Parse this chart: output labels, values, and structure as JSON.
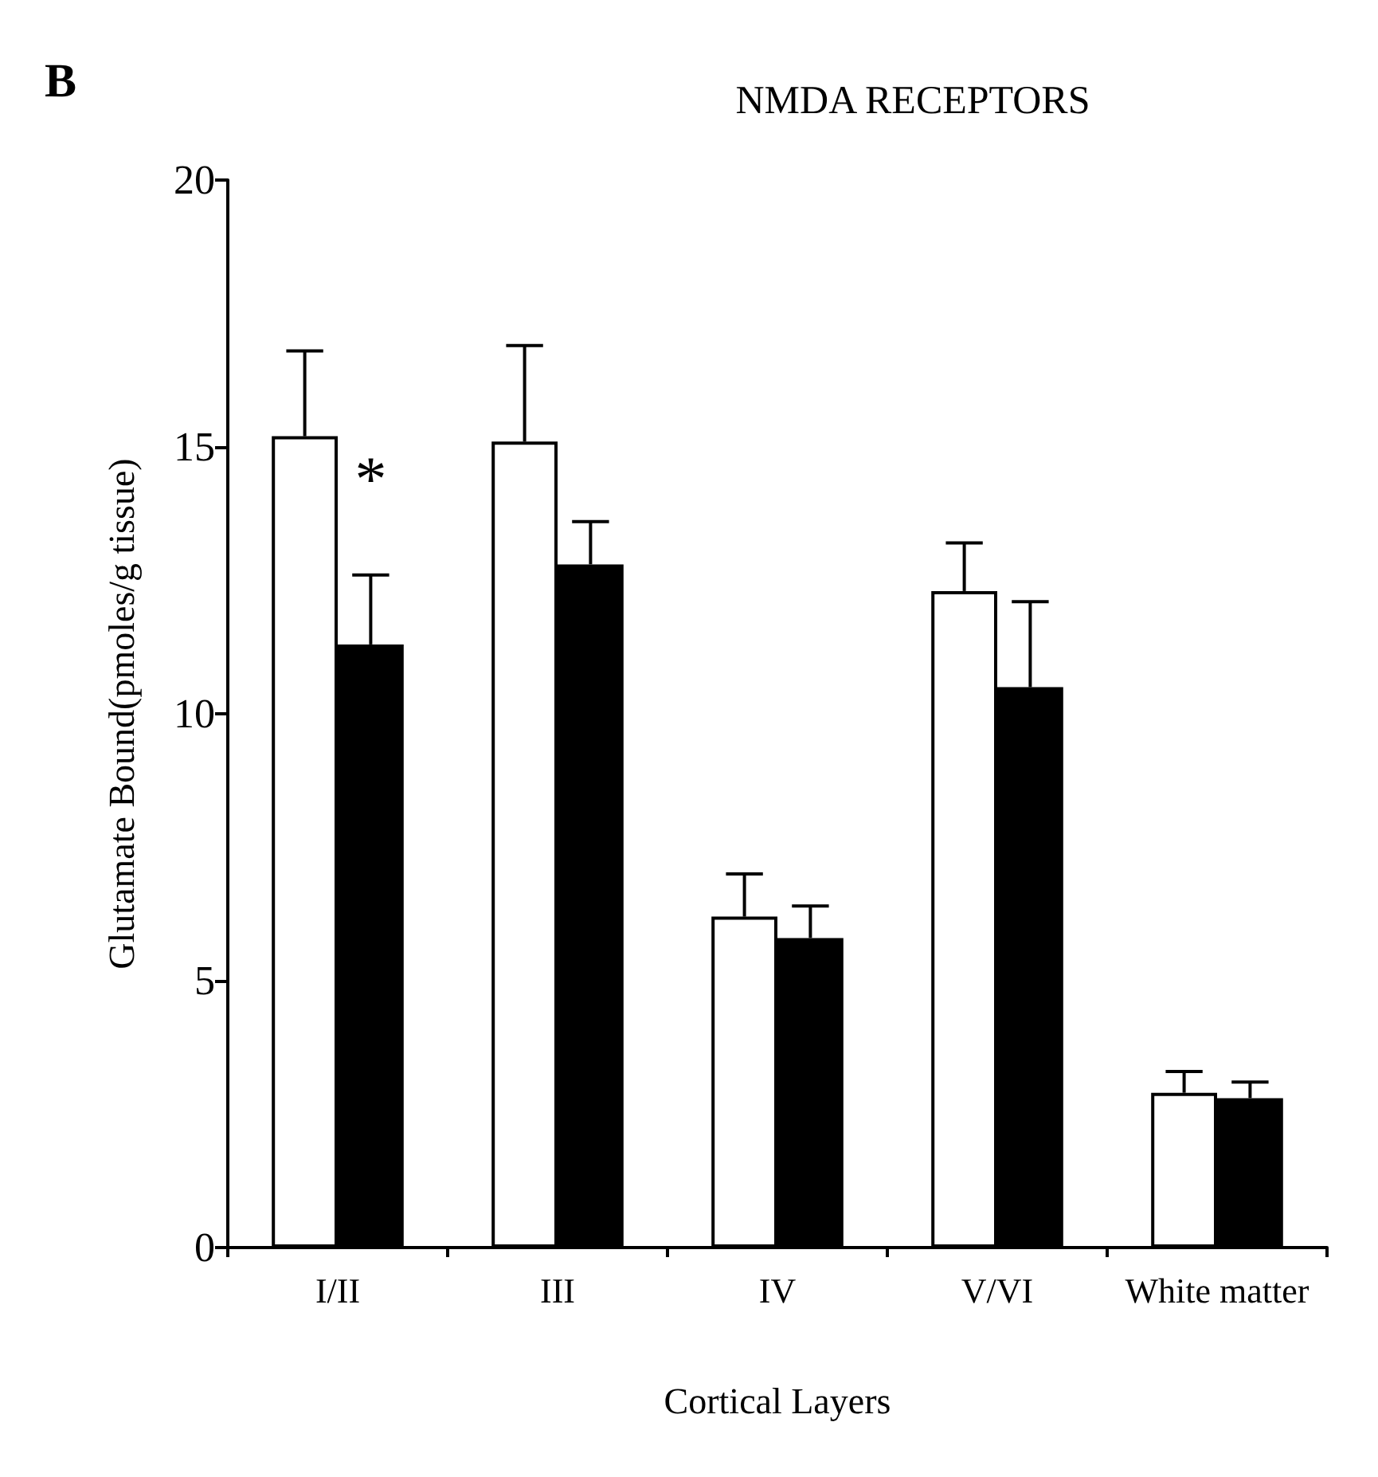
{
  "chart_data": {
    "type": "bar",
    "title": "NMDA RECEPTORS",
    "xlabel": "Cortical Layers",
    "ylabel": "Glutamate Bound(pmoles/g tissue)",
    "categories": [
      "I/II",
      "III",
      "IV",
      "V/VI",
      "White matter"
    ],
    "series": [
      {
        "color": "#ffffff",
        "values": [
          15.2,
          15.1,
          6.2,
          12.3,
          2.9
        ],
        "errors": [
          [
            15.2,
            16.8
          ],
          [
            15.1,
            16.9
          ],
          [
            6.2,
            7.0
          ],
          [
            12.3,
            13.2
          ],
          [
            2.9,
            3.3
          ]
        ]
      },
      {
        "color": "#000000",
        "values": [
          11.3,
          12.8,
          5.8,
          10.5,
          2.8
        ],
        "errors": [
          [
            11.3,
            12.6
          ],
          [
            12.8,
            13.6
          ],
          [
            5.8,
            6.4
          ],
          [
            10.5,
            12.1
          ],
          [
            2.8,
            3.1
          ]
        ]
      }
    ],
    "ylim": [
      0,
      20
    ],
    "yticks": [
      0,
      5,
      10,
      15,
      20
    ],
    "grid": false,
    "annotations": [
      "B",
      {
        "text": "*",
        "x": "I/II",
        "y": 14.4
      }
    ]
  }
}
